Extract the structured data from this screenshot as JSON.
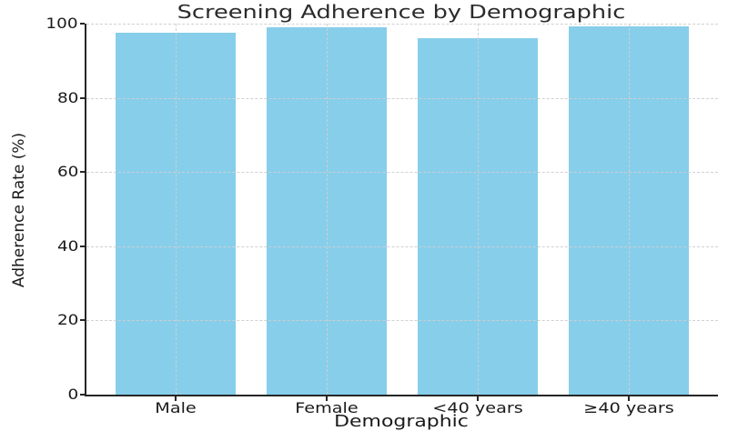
{
  "chart_data": {
    "type": "bar",
    "title": "Screening Adherence by Demographic",
    "xlabel": "Demographic",
    "ylabel": "Adherence Rate (%)",
    "categories": [
      "Male",
      "Female",
      "<40 years",
      "≥40 years"
    ],
    "values": [
      97.5,
      99.1,
      96.0,
      99.2
    ],
    "ylim": [
      0,
      100
    ],
    "yticks": [
      0,
      20,
      40,
      60,
      80,
      100
    ],
    "bar_color": "#87CEEB",
    "grid": {
      "horizontal": true,
      "vertical": true,
      "style": "dashed"
    },
    "legend_position": "none"
  },
  "colors": {
    "background": "#ffffff",
    "bar_fill": "#87CEEB",
    "axis": "#262626",
    "text": "#1a1a1a",
    "title_text": "#2b2b2b",
    "grid": "#cfcfcf"
  }
}
